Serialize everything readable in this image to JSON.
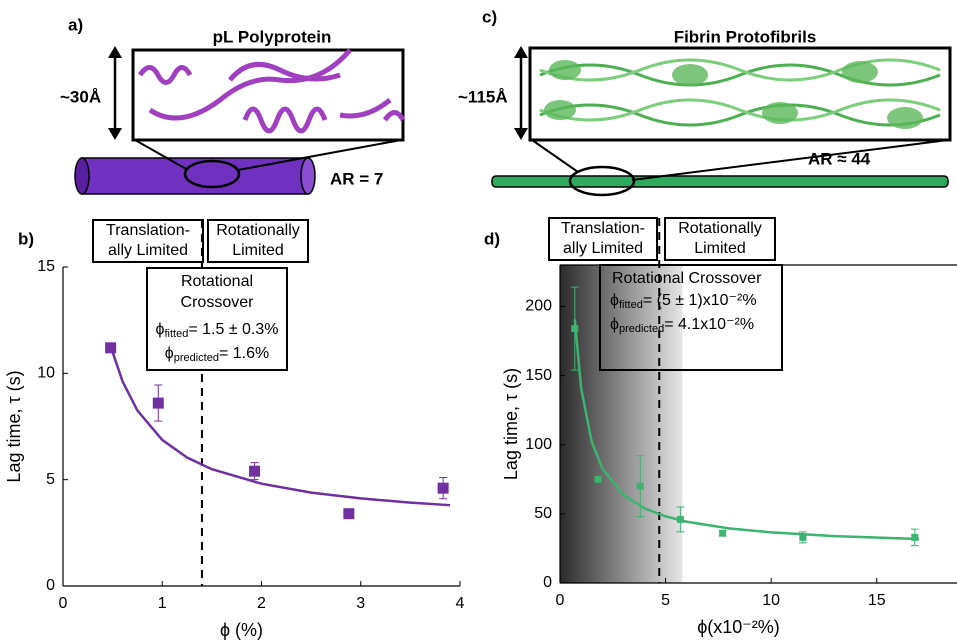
{
  "panels": {
    "a": {
      "label": "a)",
      "title": "pL Polyprotein",
      "height": "~30Å",
      "aspect_ratio": "AR = 7"
    },
    "c": {
      "label": "c)",
      "title": "Fibrin Protofibrils",
      "height": "~115Å",
      "aspect_ratio": "AR ≈ 44"
    }
  },
  "chart_data": [
    {
      "type": "scatter",
      "label": "b)",
      "xlabel": "ϕ (%)",
      "ylabel": "Lag time, τ (s)",
      "color": "#7030a0",
      "x": [
        0.48,
        0.96,
        1.93,
        2.88,
        3.83
      ],
      "values": [
        11.2,
        8.6,
        5.4,
        3.4,
        4.6
      ],
      "errors": [
        0.2,
        0.85,
        0.4,
        0.2,
        0.5
      ],
      "fit": {
        "x": [
          0.5,
          0.6,
          0.75,
          1,
          1.25,
          1.5,
          2,
          2.5,
          3,
          3.5,
          3.9
        ],
        "values": [
          11.0,
          9.62,
          8.25,
          6.87,
          6.04,
          5.49,
          4.81,
          4.39,
          4.12,
          3.92,
          3.8
        ]
      },
      "xlim": [
        0,
        4
      ],
      "ylim": [
        0,
        15
      ],
      "xticks": [
        0,
        1,
        2,
        3,
        4
      ],
      "yticks": [
        0,
        5,
        10,
        15
      ],
      "regions": [
        [
          "Translation-",
          "ally Limited"
        ],
        [
          "Rotationally",
          "Limited"
        ]
      ],
      "crossover": {
        "x": 1.4,
        "title": [
          "Rotational",
          "Crossover"
        ],
        "fitted": [
          "ϕ",
          "fitted",
          "= 1.5 ± 0.3%"
        ],
        "predicted": [
          "ϕ",
          "predicted",
          "= 1.6%"
        ]
      }
    },
    {
      "type": "scatter",
      "label": "d)",
      "xlabel": "ϕ(x10⁻²%)",
      "ylabel": "Lag time, τ (s)",
      "color": "#3cb371",
      "x": [
        0.7,
        1.8,
        3.8,
        5.7,
        7.7,
        11.5,
        16.8
      ],
      "values": [
        184,
        75,
        70,
        46,
        36,
        33,
        33
      ],
      "errors": [
        30,
        0,
        22,
        9,
        2,
        4,
        6
      ],
      "fit": {
        "x": [
          0.7,
          1,
          1.5,
          2,
          3,
          4,
          5,
          6,
          8,
          10,
          13,
          17
        ],
        "values": [
          190.7,
          141,
          102.3,
          83,
          63.7,
          54,
          48.2,
          44.3,
          39.5,
          36.6,
          33.9,
          31.8
        ]
      },
      "xlim": [
        0,
        18.8
      ],
      "ylim": [
        0,
        230
      ],
      "xticks": [
        0,
        5,
        10,
        15
      ],
      "yticks": [
        0,
        50,
        100,
        150,
        200
      ],
      "shaded_region": [
        0,
        5.8
      ],
      "regions": [
        [
          "Translation-",
          "ally Limited"
        ],
        [
          "Rotationally",
          "Limited"
        ]
      ],
      "crossover": {
        "x": 4.7,
        "title": [
          "Rotational Crossover"
        ],
        "fitted": [
          "ϕ",
          "fitted",
          "= (5 ± 1)x10⁻²%"
        ],
        "predicted": [
          "ϕ",
          "predicted",
          "= 4.1x10⁻²%"
        ]
      }
    }
  ]
}
